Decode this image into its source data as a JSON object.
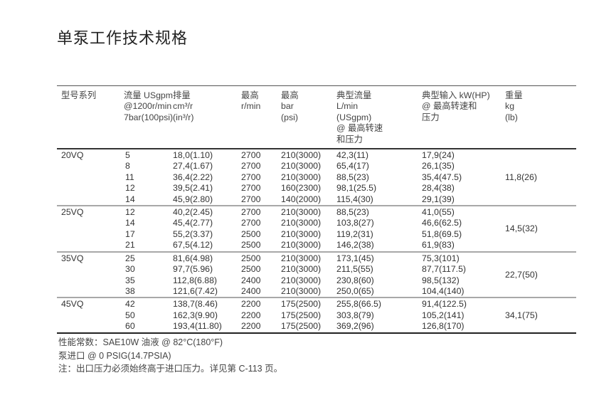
{
  "title": "单泵工作技术规格",
  "headers": [
    [
      "型号系列"
    ],
    [
      "流量 USgpm",
      "@1200r/min",
      "7bar(100psi)"
    ],
    [
      "排量",
      "cm³/r",
      "(in³/r)"
    ],
    [
      "最高",
      "r/min"
    ],
    [
      "最高",
      "bar",
      "(psi)"
    ],
    [
      "典型流量",
      "L/min",
      "(USgpm)",
      "@ 最高转速",
      "和压力"
    ],
    [
      "典型输入 kW(HP)",
      "@ 最高转速和",
      "压力"
    ],
    [
      "重量",
      "kg",
      "(lb)"
    ]
  ],
  "groups": [
    {
      "model": "20VQ",
      "weight": "11,8(26)",
      "rows": [
        [
          "5",
          "18,0(1.10)",
          "2700",
          "210(3000)",
          "42,3(11)",
          "17,9(24)"
        ],
        [
          "8",
          "27,4(1.67)",
          "2700",
          "210(3000)",
          "65,4(17)",
          "26,1(35)"
        ],
        [
          "11",
          "36,4(2.22)",
          "2700",
          "210(3000)",
          "88,5(23)",
          "35,4(47.5)"
        ],
        [
          "12",
          "39,5(2.41)",
          "2700",
          "160(2300)",
          "98,1(25.5)",
          "28,4(38)"
        ],
        [
          "14",
          "45,9(2.80)",
          "2700",
          "140(2000)",
          "115,4(30)",
          "29,1(39)"
        ]
      ]
    },
    {
      "model": "25VQ",
      "weight": "14,5(32)",
      "rows": [
        [
          "12",
          "40,2(2.45)",
          "2700",
          "210(3000)",
          "88,5(23)",
          "41,0(55)"
        ],
        [
          "14",
          "45,4(2.77)",
          "2700",
          "210(3000)",
          "103,8(27)",
          "46,6(62.5)"
        ],
        [
          "17",
          "55,2(3.37)",
          "2500",
          "210(3000)",
          "119,2(31)",
          "51,8(69.5)"
        ],
        [
          "21",
          "67,5(4.12)",
          "2500",
          "210(3000)",
          "146,2(38)",
          "61,9(83)"
        ]
      ]
    },
    {
      "model": "35VQ",
      "weight": "22,7(50)",
      "rows": [
        [
          "25",
          "81,6(4.98)",
          "2500",
          "210(3000)",
          "173,1(45)",
          "75,3(101)"
        ],
        [
          "30",
          "97,7(5.96)",
          "2500",
          "210(3000)",
          "211,5(55)",
          "87,7(117.5)"
        ],
        [
          "35",
          "112,8(6.88)",
          "2400",
          "210(3000)",
          "230,8(60)",
          "98,5(132)"
        ],
        [
          "38",
          "121,6(7.42)",
          "2400",
          "210(3000)",
          "250,0(65)",
          "104,4(140)"
        ]
      ]
    },
    {
      "model": "45VQ",
      "weight": "34,1(75)",
      "rows": [
        [
          "42",
          "138,7(8.46)",
          "2200",
          "175(2500)",
          "255,8(66.5)",
          "91,4(122.5)"
        ],
        [
          "50",
          "162,3(9.90)",
          "2200",
          "175(2500)",
          "303,8(79)",
          "105,2(141)"
        ],
        [
          "60",
          "193,4(11.80)",
          "2200",
          "175(2500)",
          "369,2(96)",
          "126,8(170)"
        ]
      ]
    }
  ],
  "notes": [
    "性能常数：SAE10W 油液 @ 82°C(180°F)",
    "泵进口 @ 0 PSIG(14.7PSIA)",
    "注：出口压力必须始终高于进口压力。详见第 C-113 页。"
  ]
}
